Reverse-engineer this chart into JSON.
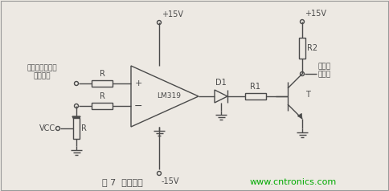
{
  "title": "图 7  过流保护",
  "website": "www.cntronics.com",
  "bg_color": "#ede9e3",
  "line_color": "#4a4a4a",
  "text_color": "#222222",
  "green_color": "#00aa00",
  "label_hall": "霍尔电流传感器\n采样信号",
  "label_vcc": "VCC",
  "label_r_top": "R",
  "label_r_mid": "R",
  "label_r_bot": "R",
  "label_lm319": "LM319",
  "label_d1": "D1",
  "label_r1": "R1",
  "label_r2": "R2",
  "label_t": "T",
  "label_plus15v_top": "+15V",
  "label_minus15v": "-15V",
  "label_plus15v_right": "+15V",
  "label_bus": "母线过\n流信号",
  "fig_width": 4.84,
  "fig_height": 2.38,
  "dpi": 100
}
